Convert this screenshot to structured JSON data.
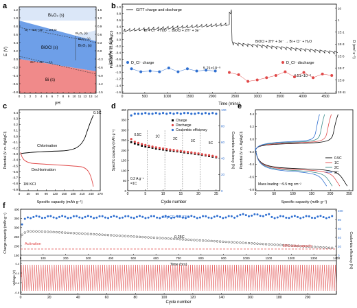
{
  "colors": {
    "blue": "#2f6fd0",
    "red": "#e04848",
    "pourbaix_blue": "#6e9fe8",
    "pourbaix_red": "#f08a8a"
  },
  "chart_data": [
    {
      "panel": "a",
      "type": "area",
      "xlabel": "pH",
      "ylabel": "E (V)",
      "ylabel_right": "E (V vs. Ag/AgCl)",
      "x_ticks": [
        "0",
        "1",
        "2",
        "3",
        "4",
        "5",
        "6",
        "7",
        "8",
        "9",
        "10",
        "11",
        "12",
        "13",
        "14"
      ],
      "y_ticks": [
        "1.2",
        "1.0",
        "0.8",
        "0.6",
        "0.4",
        "0.2",
        "0.0",
        "-0.2",
        "-0.4",
        "-0.6",
        "-0.8"
      ],
      "y_ticks_right": [
        "1.5",
        "1.2",
        "0.9",
        "0.6",
        "0.3",
        "0.0",
        "-0.3",
        "-0.6",
        "-0.9",
        "-1.2",
        "-1.5"
      ],
      "xlim": [
        0,
        14
      ],
      "ylim": [
        -0.8,
        1.3
      ],
      "regions": [
        {
          "label": "Bi2O3 (s)",
          "text": "Bi₂O₃ (s)"
        },
        {
          "label": "BiOCl (s)",
          "text": "BiOCl (s)"
        },
        {
          "label": "Bi (s)",
          "text": "Bi (s)"
        },
        {
          "label": "Bi2O3 (s) right",
          "text": "Bi₂O₃ (s)"
        }
      ],
      "annotations": [
        "O₂ + 4H⁺+4e⁻ → 2H₂O",
        "2H⁺ + 2e⁻ → H₂",
        "Bi₂O₃ (s)",
        "Bi₂O₃ (s)"
      ],
      "series": [
        {
          "name": "O2 line",
          "x": [
            0,
            14
          ],
          "y": [
            1.23,
            0.4
          ]
        },
        {
          "name": "H2 line",
          "x": [
            0,
            14
          ],
          "y": [
            0.0,
            -0.83
          ]
        },
        {
          "name": "BiOCl/Bi boundary",
          "x": [
            0,
            14
          ],
          "y": [
            0.15,
            -0.7
          ]
        }
      ]
    },
    {
      "panel": "b",
      "type": "line",
      "legend_top": "GITT charge and discharge",
      "xlabel": "Time (mins)",
      "ylabel": "Potential (V vs. Ag/AgCl)",
      "ylabel_right": "D (cm² s⁻¹)",
      "x_ticks": [
        "0",
        "500",
        "1000",
        "1500",
        "2000",
        "2500",
        "3000",
        "3500",
        "4000",
        "4500"
      ],
      "y_ticks": [
        "1.0",
        "0.8",
        "0.6",
        "0.4",
        "0.2",
        "0.0",
        "-0.2",
        "-0.4",
        "-0.6",
        "-0.8",
        "-1.0",
        "-1.2",
        "-1.4",
        "-1.6"
      ],
      "y_ticks_right": [
        "10",
        "1",
        "1E-1",
        "1E-3",
        "1E-5",
        "1E-7",
        "1E-9",
        "1E-11"
      ],
      "reaction_charge": "Bi + Cl⁻ + H₂O → BiOCl + 2H⁺ + 3e⁻",
      "reaction_discharge": "BiOCl + 2H⁺ + 3e⁻ → Bi + Cl⁻ + H₂O",
      "legend_charge": "D_Cl⁻ charge",
      "legend_discharge": "D_Cl⁻ discharge",
      "label_charge": "5.21×10⁻⁹",
      "label_discharge": "4.51×10⁻⁹",
      "xlim": [
        0,
        4600
      ],
      "charge_points": {
        "x": [
          200,
          400,
          600,
          800,
          1000,
          1200,
          1400,
          1600,
          1800,
          2000
        ],
        "logD": [
          -7.7,
          -8.1,
          -8.0,
          -8.1,
          -7.6,
          -8.1,
          -7.7,
          -8.0,
          -7.9,
          -8.0
        ]
      },
      "discharge_points": {
        "x": [
          2300,
          2500,
          2700,
          2900,
          3100,
          3300,
          3500,
          3700,
          3900,
          4100,
          4300,
          4500
        ],
        "logD": [
          -8.2,
          -8.5,
          -9.4,
          -9.2,
          -8.9,
          -8.6,
          -8.1,
          -8.8,
          -8.2,
          -8.9,
          -8.4,
          -8.6
        ]
      }
    },
    {
      "panel": "c",
      "type": "line",
      "xlabel": "Specific capacity (mAh g⁻¹)",
      "ylabel": "Potential (V vs. Ag/AgCl)",
      "x_ticks": [
        "0",
        "30",
        "60",
        "90",
        "120",
        "150",
        "180",
        "210",
        "240",
        "270"
      ],
      "y_ticks": [
        "0.4",
        "0.3",
        "0.2",
        "0.1",
        "0.0",
        "-0.1",
        "-0.2",
        "-0.3",
        "-0.4",
        "-0.5",
        "-0.6",
        "-0.7",
        "-0.8",
        "-0.9"
      ],
      "label_rate": "0.5C",
      "label_chlorination": "Chlorination",
      "label_dechlorination": "Dechlorination",
      "label_electrolyte": "1M KCl",
      "xlim": [
        0,
        270
      ],
      "ylim": [
        -0.9,
        0.45
      ]
    },
    {
      "panel": "d",
      "type": "scatter",
      "xlabel": "Cycle number",
      "ylabel": "Specific capacity (mAh g⁻¹)",
      "ylabel_right": "Coulombic efficiency (%)",
      "x_ticks": [
        "0",
        "5",
        "10",
        "15",
        "20",
        "25"
      ],
      "y_ticks": [
        "400",
        "350",
        "300",
        "250",
        "200",
        "150",
        "100",
        "50",
        "0"
      ],
      "y_ticks_right": [
        "100",
        "80",
        "60",
        "40",
        "20",
        "0"
      ],
      "legend": [
        "Charge",
        "Discharge",
        "Coulombic efficiency"
      ],
      "rate_labels": [
        "0.5C",
        "1C",
        "2C",
        "3C",
        "5C"
      ],
      "label_rate_start": "0.2 A g⁻¹",
      "label_rate_equiv": "=1C",
      "xlim": [
        0,
        26
      ],
      "ylim": [
        0,
        400
      ],
      "charge": [
        240,
        233,
        228,
        222,
        218,
        215,
        212,
        208,
        205,
        203,
        200,
        198,
        196,
        194,
        192,
        189,
        187,
        185,
        182,
        180,
        177,
        174,
        171,
        168,
        165
      ],
      "discharge": [
        255,
        242,
        236,
        230,
        226,
        222,
        218,
        214,
        211,
        208,
        205,
        203,
        201,
        198,
        196,
        193,
        191,
        189,
        186,
        184,
        180,
        177,
        175,
        172,
        168
      ],
      "ce": [
        93,
        95,
        95,
        95,
        96,
        95,
        95,
        96,
        95,
        96,
        95,
        96,
        95,
        96,
        95,
        96,
        96,
        95,
        95,
        96,
        95,
        96,
        95,
        96,
        95
      ]
    },
    {
      "panel": "e",
      "type": "line",
      "xlabel": "Specific capacity (mAh g⁻¹)",
      "ylabel": "Potential (V vs. Ag/AgCl)",
      "x_ticks": [
        "0",
        "50",
        "100",
        "150",
        "200",
        "250"
      ],
      "y_ticks": [
        "0.4",
        "0.2",
        "0.0",
        "-0.2",
        "-0.4",
        "-0.6",
        "-0.8"
      ],
      "legend": [
        "0.5C",
        "1C",
        "2C",
        "3C"
      ],
      "label_mass": "Mass loading: ~9.5 mg cm⁻²",
      "xlim": [
        0,
        260
      ],
      "ylim": [
        -0.9,
        0.5
      ],
      "capacities": [
        245,
        225,
        205,
        190
      ]
    },
    {
      "panel": "f",
      "type": "scatter",
      "xlabel": "Cycle number",
      "x2label": "Time (hrs)",
      "ylabel": "Charge capacity (mAh g⁻¹)",
      "ylabel_right": "Coulombic efficiency (%)",
      "ylabel_inset": "Voltage (V)",
      "x_ticks": [
        "0",
        "20",
        "40",
        "60",
        "80",
        "100",
        "120",
        "140",
        "160",
        "180",
        "200"
      ],
      "x2_ticks": [
        "0",
        "100",
        "200",
        "300",
        "400",
        "500",
        "600",
        "700",
        "800",
        "900",
        "1000",
        "1100",
        "1200",
        "1300",
        "1400"
      ],
      "y_ticks": [
        "400",
        "350",
        "300",
        "250",
        "200",
        "150"
      ],
      "y_ticks_right": [
        "100",
        "80",
        "60",
        "40",
        "20",
        "0"
      ],
      "inset_y_ticks": [
        "0.4",
        "0.0",
        "-0.4",
        "-0.8"
      ],
      "label_ce": "Avg CE: 93.83%",
      "label_rate": "0.25C",
      "label_activation": "Activation",
      "label_retention": "80% initial capacity",
      "xlim": [
        0,
        220
      ],
      "ylim": [
        150,
        400
      ]
    }
  ],
  "panel_letters": [
    "a",
    "b",
    "c",
    "d",
    "e",
    "f"
  ]
}
